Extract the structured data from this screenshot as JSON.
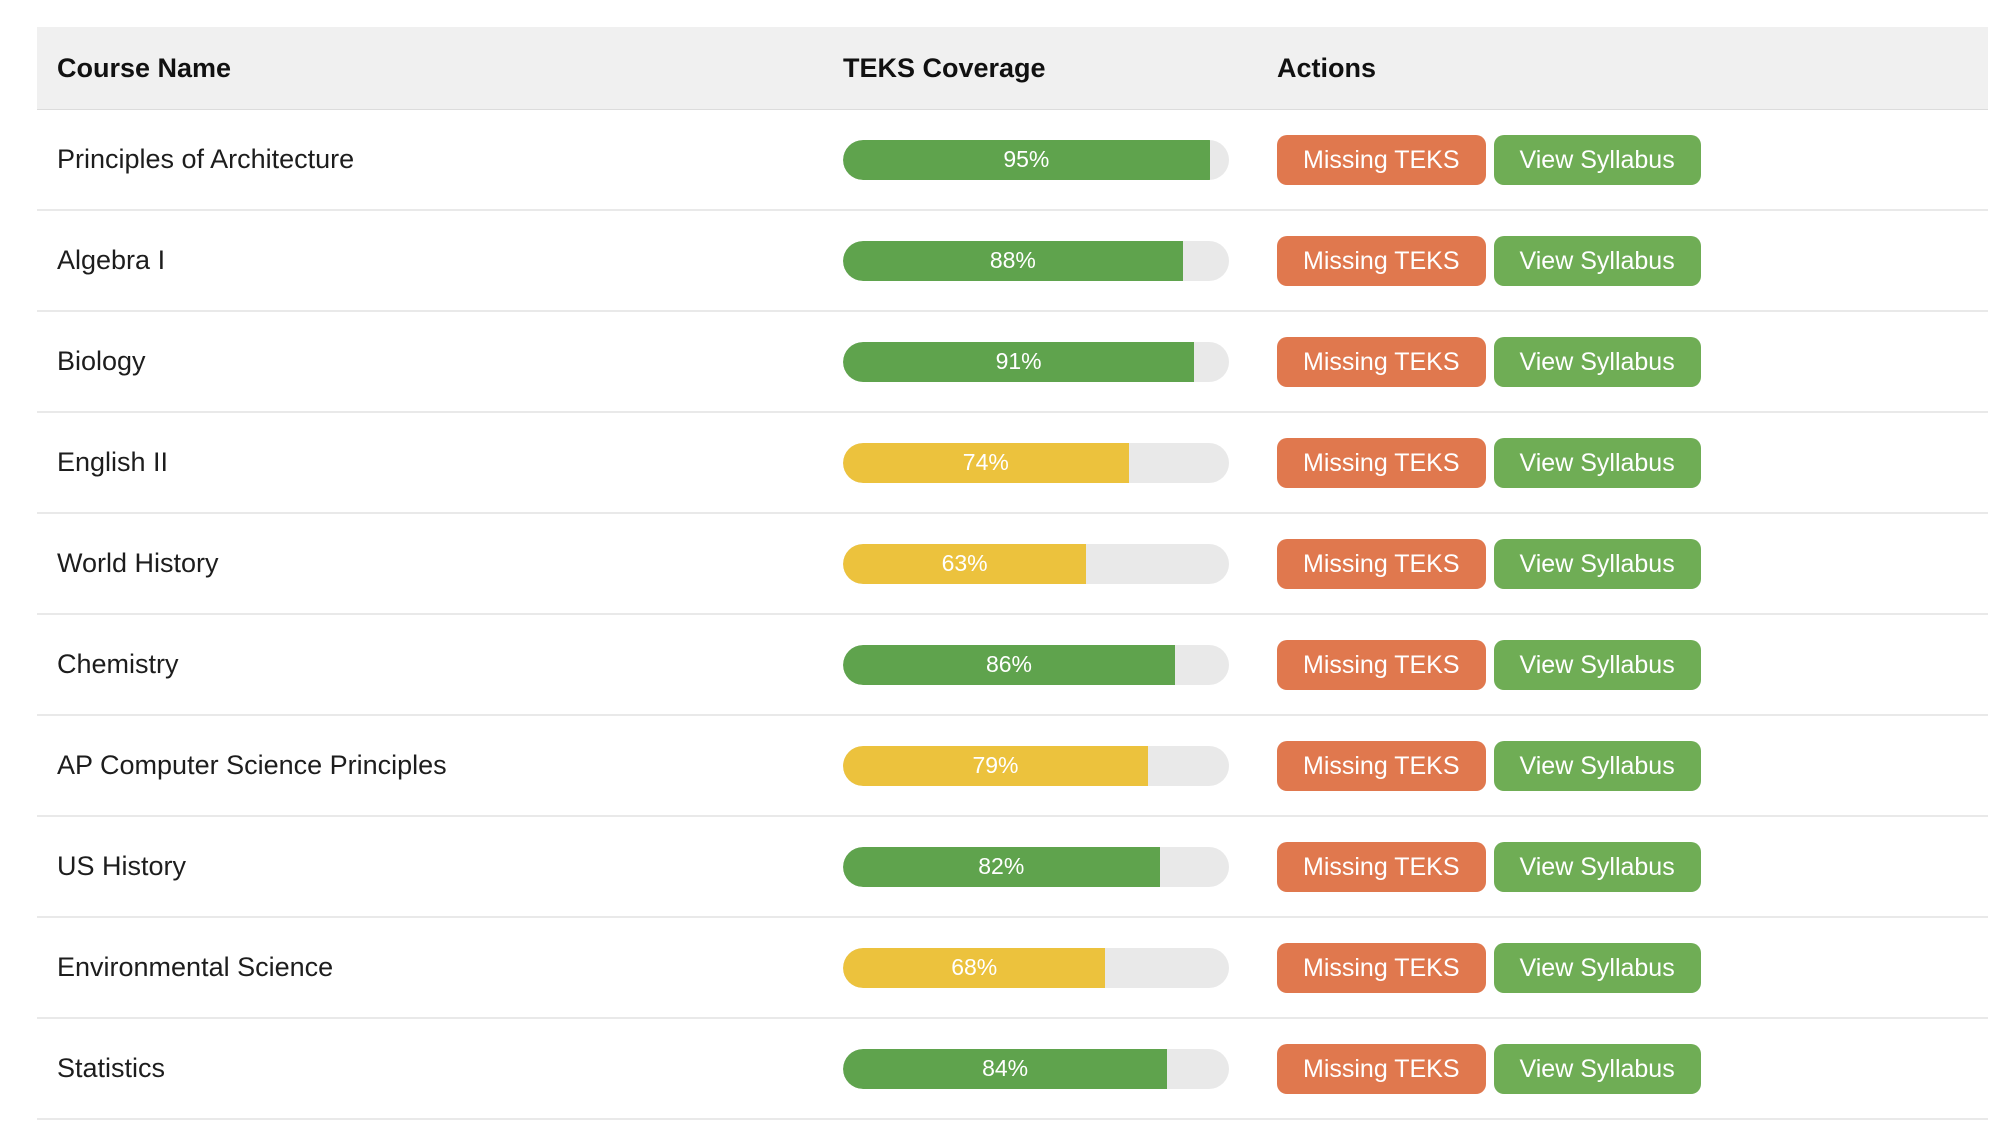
{
  "table": {
    "columns": {
      "name": "Course Name",
      "coverage": "TEKS Coverage",
      "actions": "Actions"
    },
    "actions": {
      "missing_teks": "Missing TEKS",
      "view_syllabus": "View Syllabus"
    },
    "courses": [
      {
        "name": "Principles of Architecture",
        "coverage_pct": 95,
        "coverage_label": "95%",
        "status": "green"
      },
      {
        "name": "Algebra I",
        "coverage_pct": 88,
        "coverage_label": "88%",
        "status": "green"
      },
      {
        "name": "Biology",
        "coverage_pct": 91,
        "coverage_label": "91%",
        "status": "green"
      },
      {
        "name": "English II",
        "coverage_pct": 74,
        "coverage_label": "74%",
        "status": "yellow"
      },
      {
        "name": "World History",
        "coverage_pct": 63,
        "coverage_label": "63%",
        "status": "yellow"
      },
      {
        "name": "Chemistry",
        "coverage_pct": 86,
        "coverage_label": "86%",
        "status": "green"
      },
      {
        "name": "AP Computer Science Principles",
        "coverage_pct": 79,
        "coverage_label": "79%",
        "status": "yellow"
      },
      {
        "name": "US History",
        "coverage_pct": 82,
        "coverage_label": "82%",
        "status": "green"
      },
      {
        "name": "Environmental Science",
        "coverage_pct": 68,
        "coverage_label": "68%",
        "status": "yellow"
      },
      {
        "name": "Statistics",
        "coverage_pct": 84,
        "coverage_label": "84%",
        "status": "green"
      }
    ]
  },
  "colors": {
    "header_bg": "#f0f0f0",
    "bar_track": "#e9e9e9",
    "bar_green": "#5fa34d",
    "bar_yellow": "#ecc23d",
    "button_missing_teks": "#e0784e",
    "button_view_syllabus": "#6fad55"
  }
}
